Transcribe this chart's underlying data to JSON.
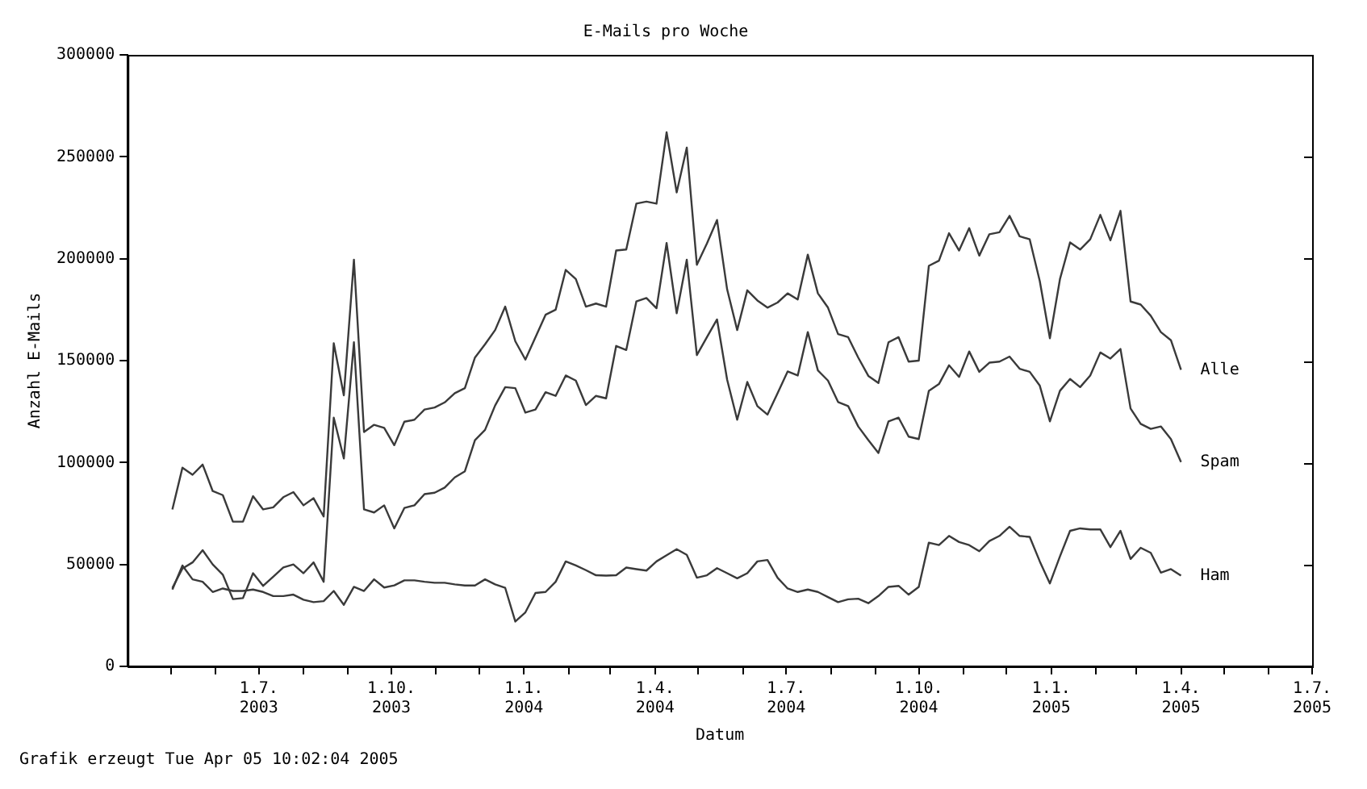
{
  "chart_data": {
    "type": "line",
    "title": "E-Mails pro Woche",
    "xlabel": "Datum",
    "ylabel": "Anzahl E-Mails",
    "annotations": [
      "Grafik erzeugt Tue Apr 05 10:02:04 2005"
    ],
    "x": [
      "2003-05-02",
      "2003-05-09",
      "2003-05-16",
      "2003-05-23",
      "2003-05-30",
      "2003-06-06",
      "2003-06-13",
      "2003-06-20",
      "2003-06-27",
      "2003-07-04",
      "2003-07-11",
      "2003-07-18",
      "2003-07-25",
      "2003-08-01",
      "2003-08-08",
      "2003-08-15",
      "2003-08-22",
      "2003-08-29",
      "2003-09-05",
      "2003-09-12",
      "2003-09-19",
      "2003-09-26",
      "2003-10-03",
      "2003-10-10",
      "2003-10-17",
      "2003-10-24",
      "2003-10-31",
      "2003-11-07",
      "2003-11-14",
      "2003-11-21",
      "2003-11-28",
      "2003-12-05",
      "2003-12-12",
      "2003-12-19",
      "2003-12-26",
      "2004-01-02",
      "2004-01-09",
      "2004-01-16",
      "2004-01-23",
      "2004-01-30",
      "2004-02-06",
      "2004-02-13",
      "2004-02-20",
      "2004-02-27",
      "2004-03-05",
      "2004-03-12",
      "2004-03-19",
      "2004-03-26",
      "2004-04-02",
      "2004-04-09",
      "2004-04-16",
      "2004-04-23",
      "2004-04-30",
      "2004-05-07",
      "2004-05-14",
      "2004-05-21",
      "2004-05-28",
      "2004-06-04",
      "2004-06-11",
      "2004-06-18",
      "2004-06-25",
      "2004-07-02",
      "2004-07-09",
      "2004-07-16",
      "2004-07-23",
      "2004-07-30",
      "2004-08-06",
      "2004-08-13",
      "2004-08-20",
      "2004-08-27",
      "2004-09-03",
      "2004-09-10",
      "2004-09-17",
      "2004-09-24",
      "2004-10-01",
      "2004-10-08",
      "2004-10-15",
      "2004-10-22",
      "2004-10-29",
      "2004-11-05",
      "2004-11-12",
      "2004-11-19",
      "2004-11-26",
      "2004-12-03",
      "2004-12-10",
      "2004-12-17",
      "2004-12-24",
      "2004-12-31",
      "2005-01-07",
      "2005-01-14",
      "2005-01-21",
      "2005-01-28",
      "2005-02-04",
      "2005-02-11",
      "2005-02-18",
      "2005-02-25",
      "2005-03-04",
      "2005-03-11",
      "2005-03-18",
      "2005-03-25",
      "2005-04-01"
    ],
    "series": [
      {
        "name": "Alle",
        "color": "#3a3a3a",
        "values": [
          77000,
          97500,
          94000,
          99000,
          86000,
          84000,
          71000,
          71000,
          83500,
          77000,
          78000,
          83000,
          85500,
          79000,
          82500,
          73500,
          158500,
          133000,
          199500,
          115000,
          118500,
          117000,
          108500,
          120000,
          121000,
          126000,
          127000,
          129500,
          134000,
          136500,
          151500,
          158000,
          165000,
          176500,
          159500,
          150500,
          161500,
          172500,
          175000,
          194500,
          190000,
          176500,
          178000,
          176500,
          204000,
          204500,
          227000,
          228000,
          227000,
          262000,
          232500,
          254500,
          197000,
          207500,
          219000,
          185000,
          165000,
          184500,
          179500,
          176000,
          178500,
          183000,
          180000,
          202000,
          183000,
          176000,
          163000,
          161500,
          151500,
          142500,
          139000,
          159000,
          161500,
          149500,
          150000,
          196500,
          199000,
          212500,
          204000,
          215000,
          201500,
          212000,
          213000,
          221000,
          211000,
          209500,
          189000,
          161000,
          190000,
          208000,
          204500,
          209500,
          221500,
          209000,
          223500,
          179000,
          177500,
          172000,
          164000,
          160000,
          145500
        ]
      },
      {
        "name": "Spam",
        "color": "#3a3a3a",
        "values": [
          38500,
          48000,
          51000,
          57000,
          50000,
          45000,
          33000,
          33500,
          45700,
          39500,
          44000,
          48500,
          50000,
          45700,
          51000,
          41500,
          122000,
          102000,
          159000,
          77000,
          75500,
          79000,
          67700,
          77700,
          79000,
          84500,
          85200,
          87700,
          92700,
          95700,
          111000,
          116000,
          128000,
          137000,
          136500,
          124500,
          126000,
          134500,
          132700,
          142700,
          140200,
          128200,
          132700,
          131500,
          157200,
          155200,
          179000,
          180700,
          175700,
          207700,
          173200,
          199500,
          152700,
          161500,
          170200,
          140700,
          121000,
          139500,
          127700,
          123500,
          134000,
          144700,
          142700,
          164000,
          145200,
          140200,
          129700,
          127700,
          117700,
          111000,
          104700,
          120200,
          122000,
          112700,
          111500,
          135200,
          138500,
          147700,
          142000,
          154500,
          144500,
          149000,
          149500,
          152000,
          146000,
          144500,
          137700,
          120200,
          135200,
          141000,
          137000,
          142700,
          154000,
          151000,
          155700,
          126500,
          119000,
          116500,
          117700,
          111500,
          100200
        ]
      },
      {
        "name": "Ham",
        "color": "#3a3a3a",
        "values": [
          37700,
          49500,
          42700,
          41500,
          36500,
          38200,
          37000,
          37000,
          37700,
          36500,
          34500,
          34500,
          35200,
          32700,
          31500,
          32000,
          37000,
          30200,
          39000,
          37000,
          42700,
          38700,
          39700,
          42200,
          42200,
          41500,
          41000,
          41000,
          40200,
          39700,
          39700,
          42700,
          40200,
          38500,
          22000,
          26500,
          36000,
          36500,
          41500,
          51500,
          49500,
          47200,
          44700,
          44500,
          44700,
          48500,
          47700,
          47000,
          51500,
          54500,
          57500,
          54700,
          43500,
          44700,
          48200,
          45700,
          43200,
          45700,
          51500,
          52200,
          43500,
          38200,
          36500,
          37700,
          36500,
          34000,
          31500,
          32900,
          33200,
          31000,
          34500,
          39000,
          39500,
          35200,
          39000,
          60700,
          59500,
          64000,
          61000,
          59500,
          56500,
          61500,
          64000,
          68500,
          64000,
          63500,
          51500,
          40700,
          54000,
          66500,
          67700,
          67200,
          67200,
          58500,
          66500,
          52700,
          58200,
          55700,
          46000,
          47700,
          44500
        ]
      }
    ],
    "xlim": [
      "2003-04-01",
      "2005-07-01"
    ],
    "xticks": [
      {
        "value": "2003-05-01",
        "label": null
      },
      {
        "value": "2003-06-01",
        "label": null
      },
      {
        "value": "2003-07-01",
        "label": "1.7.\n2003"
      },
      {
        "value": "2003-08-01",
        "label": null
      },
      {
        "value": "2003-09-01",
        "label": null
      },
      {
        "value": "2003-10-01",
        "label": "1.10.\n2003"
      },
      {
        "value": "2003-11-01",
        "label": null
      },
      {
        "value": "2003-12-01",
        "label": null
      },
      {
        "value": "2004-01-01",
        "label": "1.1.\n2004"
      },
      {
        "value": "2004-02-01",
        "label": null
      },
      {
        "value": "2004-03-01",
        "label": null
      },
      {
        "value": "2004-04-01",
        "label": "1.4.\n2004"
      },
      {
        "value": "2004-05-01",
        "label": null
      },
      {
        "value": "2004-06-01",
        "label": null
      },
      {
        "value": "2004-07-01",
        "label": "1.7.\n2004"
      },
      {
        "value": "2004-08-01",
        "label": null
      },
      {
        "value": "2004-09-01",
        "label": null
      },
      {
        "value": "2004-10-01",
        "label": "1.10.\n2004"
      },
      {
        "value": "2004-11-01",
        "label": null
      },
      {
        "value": "2004-12-01",
        "label": null
      },
      {
        "value": "2005-01-01",
        "label": "1.1.\n2005"
      },
      {
        "value": "2005-02-01",
        "label": null
      },
      {
        "value": "2005-03-01",
        "label": null
      },
      {
        "value": "2005-04-01",
        "label": "1.4.\n2005"
      },
      {
        "value": "2005-05-01",
        "label": null
      },
      {
        "value": "2005-06-01",
        "label": null
      },
      {
        "value": "2005-07-01",
        "label": "1.7.\n2005"
      }
    ],
    "ylim": [
      0,
      300000
    ],
    "yticks": [
      0,
      50000,
      100000,
      150000,
      200000,
      250000,
      300000
    ],
    "grid": false,
    "legend": false,
    "marker": "none",
    "line_style": "solid"
  }
}
